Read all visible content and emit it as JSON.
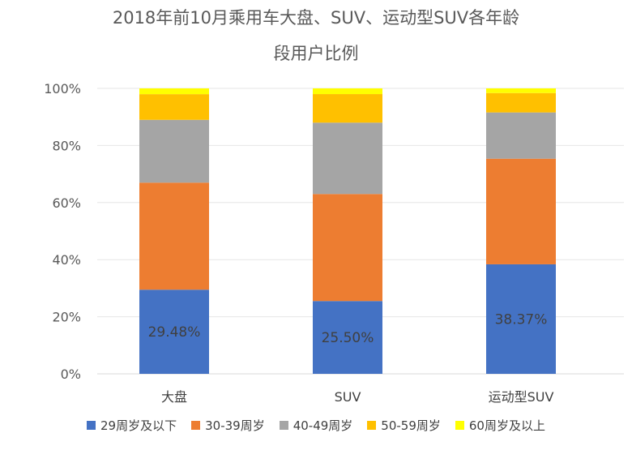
{
  "chart_data": {
    "type": "bar",
    "stacked": true,
    "title_line1": "2018年前10月乘用车大盘、SUV、运动型SUV各年龄",
    "title_line2": "段用户比例",
    "categories": [
      "大盘",
      "SUV",
      "运动型SUV"
    ],
    "series": [
      {
        "name": "29周岁及以下",
        "color": "#4472C4",
        "values": [
          29.48,
          25.5,
          38.37
        ]
      },
      {
        "name": "30-39周岁",
        "color": "#ED7D31",
        "values": [
          37.5,
          37.5,
          37.0
        ]
      },
      {
        "name": "40-49周岁",
        "color": "#A5A5A5",
        "values": [
          22.0,
          25.0,
          16.2
        ]
      },
      {
        "name": "50-59周岁",
        "color": "#FFC000",
        "values": [
          9.0,
          10.0,
          6.8
        ]
      },
      {
        "name": "60周岁及以上",
        "color": "#FFFF00",
        "values": [
          2.02,
          2.0,
          1.63
        ]
      }
    ],
    "data_labels": [
      "29.48%",
      "25.50%",
      "38.37%"
    ],
    "y_ticks": [
      "0%",
      "20%",
      "40%",
      "60%",
      "80%",
      "100%"
    ],
    "ylim": [
      0,
      100
    ],
    "grid": true,
    "legend_position": "bottom"
  }
}
